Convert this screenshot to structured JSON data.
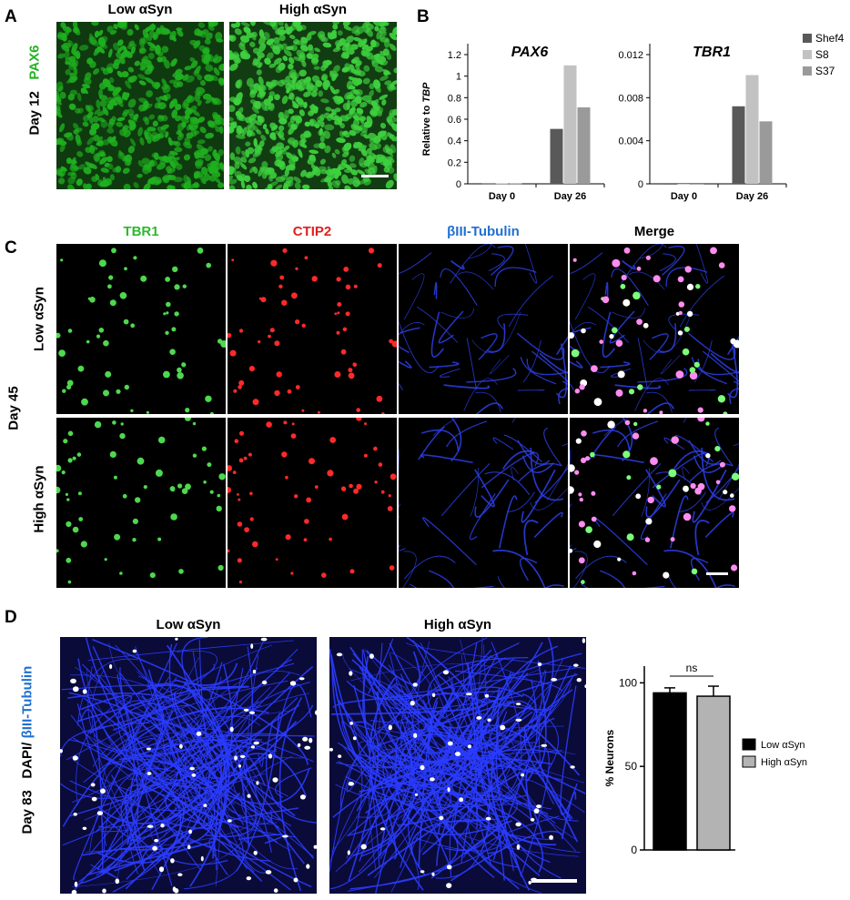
{
  "panel_letters": {
    "a": "A",
    "b": "B",
    "c": "C",
    "d": "D"
  },
  "panel_a": {
    "col_low": "Low αSyn",
    "col_high": "High αSyn",
    "row_day": "Day 12",
    "row_marker": "PAX6",
    "colors": {
      "marker": "#22b222"
    }
  },
  "panel_b": {
    "legend": [
      "Shef4",
      "S8",
      "S37"
    ],
    "colors": [
      "#595959",
      "#c2c2c2",
      "#9a9a9a"
    ]
  },
  "panel_c": {
    "col_tbr1": "TBR1",
    "col_ctip2": "CTIP2",
    "col_tub": "βIII-Tubulin",
    "col_merge": "Merge",
    "row_low": "Low αSyn",
    "row_high": "High αSyn",
    "row_day": "Day 45",
    "colors": {
      "tbr1": "#2eb82e",
      "ctip2": "#e02020",
      "tub": "#1f6fd1"
    }
  },
  "panel_d": {
    "col_low": "Low αSyn",
    "col_high": "High αSyn",
    "row_day": "Day 83",
    "row_dapi": "DAPI/",
    "row_tub": "βIII-Tubulin",
    "colors": {
      "tub": "#1f6fd1"
    }
  },
  "chart_data": [
    {
      "type": "bar",
      "title": "PAX6",
      "ylabel": "Relative to TBP",
      "categories": [
        "Day 0",
        "Day 26"
      ],
      "yticks": [
        "0",
        "0.2",
        "0.4",
        "0.6",
        "0.8",
        "1",
        "1.2"
      ],
      "ylim": [
        0,
        1.2
      ],
      "series": [
        {
          "name": "Shef4",
          "values": [
            0.005,
            0.51
          ]
        },
        {
          "name": "S8",
          "values": [
            0.005,
            1.1
          ]
        },
        {
          "name": "S37",
          "values": [
            0.005,
            0.71
          ]
        }
      ]
    },
    {
      "type": "bar",
      "title": "TBR1",
      "ylabel": "",
      "categories": [
        "Day 0",
        "Day 26"
      ],
      "yticks": [
        "0",
        "0.004",
        "0.008",
        "0.012"
      ],
      "ylim": [
        0,
        0.012
      ],
      "series": [
        {
          "name": "Shef4",
          "values": [
            0,
            0.0072
          ]
        },
        {
          "name": "S8",
          "values": [
            0,
            0.0101
          ]
        },
        {
          "name": "S37",
          "values": [
            0,
            0.0058
          ]
        }
      ]
    },
    {
      "type": "bar",
      "title": "",
      "ylabel": "% Neurons",
      "categories": [
        "Low αSyn",
        "High αSyn"
      ],
      "values": [
        94,
        92
      ],
      "errors": [
        3,
        6
      ],
      "yticks": [
        "0",
        "50",
        "100"
      ],
      "ylim": [
        0,
        110
      ],
      "annotation": "ns",
      "legend": [
        "Low αSyn",
        "High αSyn"
      ],
      "colors": [
        "#000000",
        "#b3b3b3"
      ]
    }
  ]
}
